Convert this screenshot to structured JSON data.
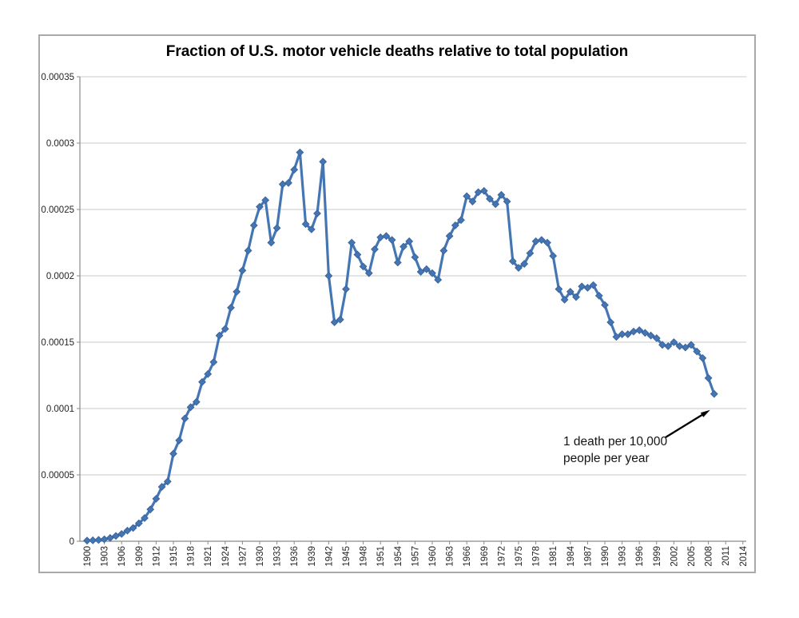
{
  "title": "Fraction of U.S. motor vehicle deaths relative to total population",
  "annotation": {
    "line1": "1 death per 10,000",
    "line2": "people per year",
    "full_text": "1 death per 10,000 people per year",
    "points_to_year": 2009
  },
  "y_axis": {
    "tick_labels": [
      "0.00035",
      "0.0003",
      "0.00025",
      "0.0002",
      "0.00015",
      "0.0001",
      "0.00005",
      "0"
    ],
    "min": 0,
    "max": 0.00035,
    "tick_step": 5e-05
  },
  "x_axis": {
    "tick_labels": [
      "1900",
      "1903",
      "1906",
      "1909",
      "1912",
      "1915",
      "1918",
      "1921",
      "1924",
      "1927",
      "1930",
      "1933",
      "1936",
      "1939",
      "1942",
      "1945",
      "1948",
      "1951",
      "1954",
      "1957",
      "1960",
      "1963",
      "1966",
      "1969",
      "1972",
      "1975",
      "1978",
      "1981",
      "1984",
      "1987",
      "1990",
      "1993",
      "1996",
      "1999",
      "2002",
      "2005",
      "2008",
      "2011",
      "2014"
    ],
    "min": 1900,
    "max": 2014,
    "label_step": 3
  },
  "colors": {
    "series": "#4576b4",
    "marker_edge": "#3a649e",
    "gridline": "#c9c9c9",
    "axis": "#8a8a8a",
    "frame_border": "#a9a9a9",
    "tick_text": "#242424",
    "annotation_arrow": "#000000"
  },
  "chart_data": {
    "type": "line",
    "title": "Fraction of U.S. motor vehicle deaths relative to total population",
    "xlabel": "",
    "ylabel": "",
    "xlim": [
      1900,
      2014
    ],
    "ylim": [
      0,
      0.00035
    ],
    "grid": true,
    "legend": false,
    "marker": "diamond",
    "x": [
      1900,
      1901,
      1902,
      1903,
      1904,
      1905,
      1906,
      1907,
      1908,
      1909,
      1910,
      1911,
      1912,
      1913,
      1914,
      1915,
      1916,
      1917,
      1918,
      1919,
      1920,
      1921,
      1922,
      1923,
      1924,
      1925,
      1926,
      1927,
      1928,
      1929,
      1930,
      1931,
      1932,
      1933,
      1934,
      1935,
      1936,
      1937,
      1938,
      1939,
      1940,
      1941,
      1942,
      1943,
      1944,
      1945,
      1946,
      1947,
      1948,
      1949,
      1950,
      1951,
      1952,
      1953,
      1954,
      1955,
      1956,
      1957,
      1958,
      1959,
      1960,
      1961,
      1962,
      1963,
      1964,
      1965,
      1966,
      1967,
      1968,
      1969,
      1970,
      1971,
      1972,
      1973,
      1974,
      1975,
      1976,
      1977,
      1978,
      1979,
      1980,
      1981,
      1982,
      1983,
      1984,
      1985,
      1986,
      1987,
      1988,
      1989,
      1990,
      1991,
      1992,
      1993,
      1994,
      1995,
      1996,
      1997,
      1998,
      1999,
      2000,
      2001,
      2002,
      2003,
      2004,
      2005,
      2006,
      2007,
      2008,
      2009
    ],
    "values": [
      5e-07,
      7e-07,
      1e-06,
      1.5e-06,
      2.5e-06,
      4e-06,
      5.5e-06,
      8e-06,
      1e-05,
      1.35e-05,
      1.75e-05,
      2.4e-05,
      3.2e-05,
      4.1e-05,
      4.5e-05,
      6.6e-05,
      7.6e-05,
      9.25e-05,
      0.000101,
      0.000105,
      0.00012,
      0.000126,
      0.000135,
      0.000155,
      0.00016,
      0.000176,
      0.000188,
      0.000204,
      0.000219,
      0.000238,
      0.000252,
      0.000257,
      0.000225,
      0.000236,
      0.000269,
      0.00027,
      0.00028,
      0.000293,
      0.000239,
      0.000235,
      0.000247,
      0.000286,
      0.0002,
      0.000165,
      0.000167,
      0.00019,
      0.000225,
      0.000216,
      0.000207,
      0.000202,
      0.00022,
      0.000229,
      0.00023,
      0.000227,
      0.00021,
      0.000222,
      0.000226,
      0.000214,
      0.000203,
      0.000205,
      0.000202,
      0.000197,
      0.000219,
      0.00023,
      0.000238,
      0.000242,
      0.00026,
      0.000256,
      0.000263,
      0.000264,
      0.000258,
      0.000254,
      0.000261,
      0.000256,
      0.000211,
      0.000206,
      0.000209,
      0.000217,
      0.000226,
      0.000227,
      0.000225,
      0.000215,
      0.00019,
      0.000182,
      0.000188,
      0.000184,
      0.000192,
      0.000191,
      0.000193,
      0.000185,
      0.000178,
      0.000165,
      0.000154,
      0.000156,
      0.000156,
      0.000158,
      0.000159,
      0.000157,
      0.000155,
      0.000153,
      0.000148,
      0.000147,
      0.00015,
      0.000147,
      0.000146,
      0.000148,
      0.000143,
      0.000138,
      0.000123,
      0.000111
    ],
    "annotations": [
      {
        "text": "1 death per 10,000 people per year",
        "arrow_to": {
          "year": 2009,
          "value": 0.000111
        }
      }
    ]
  }
}
